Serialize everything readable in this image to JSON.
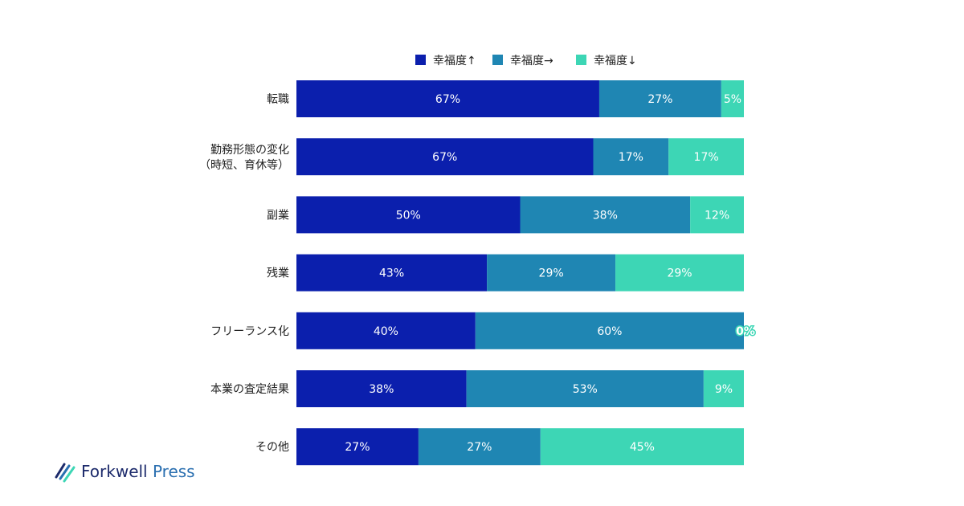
{
  "chart_data": {
    "type": "bar",
    "orientation": "horizontal",
    "stacked": true,
    "normalized": true,
    "categories": [
      [
        "転職"
      ],
      [
        "勤務形態の変化",
        "（時短、育休等）"
      ],
      [
        "副業"
      ],
      [
        "残業"
      ],
      [
        "フリーランス化"
      ],
      [
        "本業の査定結果"
      ],
      [
        "その他"
      ]
    ],
    "series": [
      {
        "name": "幸福度↑",
        "color": "#0b1fad",
        "values": [
          67,
          67,
          50,
          43,
          40,
          38,
          27
        ]
      },
      {
        "name": "幸福度→",
        "color": "#1f86b3",
        "values": [
          27,
          17,
          38,
          29,
          60,
          53,
          27
        ]
      },
      {
        "name": "幸福度↓",
        "color": "#3dd6b5",
        "values": [
          5,
          17,
          12,
          29,
          0,
          9,
          45
        ]
      }
    ],
    "labels": [
      [
        "67%",
        "27%",
        "5%"
      ],
      [
        "67%",
        "17%",
        "17%"
      ],
      [
        "50%",
        "38%",
        "12%"
      ],
      [
        "43%",
        "29%",
        "29%"
      ],
      [
        "40%",
        "60%",
        "0%"
      ],
      [
        "38%",
        "53%",
        "9%"
      ],
      [
        "27%",
        "27%",
        "45%"
      ]
    ],
    "legend_position": "top",
    "grid": false
  },
  "logo": {
    "name": "Forkwell",
    "suffix": "Press",
    "icon": "forkwell-stripes-icon"
  }
}
